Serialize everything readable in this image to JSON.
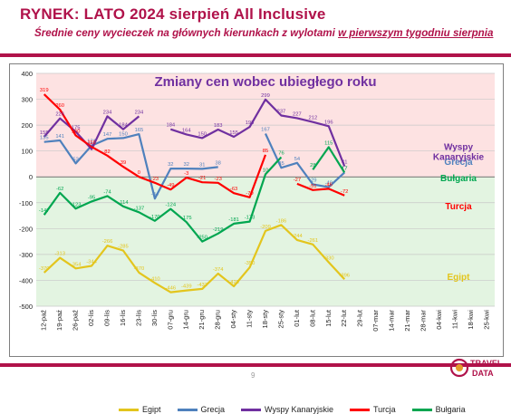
{
  "header": {
    "title": "RYNEK: LATO 2024 sierpień All Inclusive",
    "subtitle_a": "Średnie ceny wycieczek na głównych kierunkach z wylotami ",
    "subtitle_b": "w pierwszym tygodniu sierpnia"
  },
  "footer": {
    "page": "9",
    "logo_top": "TRAVEL",
    "logo_bottom": "DATA"
  },
  "chart_data": {
    "type": "line",
    "title": "Zmiany cen wobec ubiegłego roku",
    "xlabel": "",
    "ylabel": "",
    "ylim": [
      -500,
      400
    ],
    "yticks": [
      400,
      300,
      200,
      100,
      0,
      -100,
      -200,
      -300,
      -400,
      -500
    ],
    "grid": true,
    "legend": "bottom",
    "categories": [
      "12-paź",
      "19-paź",
      "26-paź",
      "02-lis",
      "09-lis",
      "16-lis",
      "23-lis",
      "30-lis",
      "07-gru",
      "14-gru",
      "21-gru",
      "28-gru",
      "04-sty",
      "11-sty",
      "18-sty",
      "25-sty",
      "01-lut",
      "08-lut",
      "15-lut",
      "22-lut",
      "29-lut",
      "07-mar",
      "14-mar",
      "21-mar",
      "28-mar",
      "04-kwi",
      "11-kwi",
      "18-kwi",
      "25-kwi"
    ],
    "series": [
      {
        "name": "Egipt",
        "color": "#e3c51d",
        "end_label": "Egipt",
        "end_y": -399,
        "values": [
          -370,
          -313,
          -354,
          -344,
          -266,
          -285,
          -370,
          -410,
          -446,
          -439,
          -433,
          -374,
          -423,
          -350,
          -209,
          -186,
          -244,
          -261,
          -330,
          -396,
          null,
          null,
          null,
          null,
          null,
          null,
          null,
          null,
          null
        ],
        "labels": [
          "-370",
          "-313",
          "-354",
          "-344",
          "-266",
          "-285",
          "-370",
          "-410",
          "-446",
          "-439",
          "-433",
          "-374",
          "-423",
          "-350",
          "-209",
          "-186",
          "-244",
          "-261",
          "-330",
          "-396",
          "",
          "",
          "",
          "",
          "",
          "",
          "",
          "",
          ""
        ]
      },
      {
        "name": "Grecja",
        "color": "#4f81bd",
        "end_label": "Grecja",
        "end_y": 46,
        "values": [
          135,
          141,
          52,
          121,
          147,
          150,
          165,
          -84,
          32,
          32,
          31,
          38,
          null,
          null,
          167,
          35,
          54,
          -29,
          -40,
          17,
          null,
          null,
          null,
          null,
          null,
          null,
          null,
          null,
          null
        ],
        "labels": [
          "135",
          "141",
          "52",
          "121",
          "147",
          "150",
          "165",
          "-84",
          "32",
          "32",
          "31",
          "38",
          "",
          "",
          "167",
          "35",
          "54",
          "-29",
          "-40",
          "17",
          "",
          "",
          "",
          "",
          "",
          "",
          "",
          "",
          ""
        ]
      },
      {
        "name": "Wyspy Kanaryjskie",
        "color": "#7030a0",
        "end_label": "Wyspy\nKanaryjskie",
        "end_y": 104,
        "values": [
          155,
          226,
          175,
          107,
          234,
          184,
          234,
          null,
          184,
          164,
          150,
          183,
          155,
          193,
          299,
          237,
          227,
          212,
          196,
          41,
          null,
          null,
          null,
          null,
          null,
          null,
          null,
          null,
          null
        ],
        "labels": [
          "155",
          "226",
          "175",
          "107",
          "234",
          "184",
          "234",
          "",
          "184",
          "164",
          "150",
          "183",
          "155",
          "193",
          "299",
          "237",
          "227",
          "212",
          "196",
          "41",
          "",
          "",
          "",
          "",
          "",
          "",
          "",
          "",
          ""
        ]
      },
      {
        "name": "Turcja",
        "color": "#ff0000",
        "end_label": "Turcja",
        "end_y": -125,
        "values": [
          319,
          260,
          160,
          116,
          82,
          39,
          0,
          -23,
          -49,
          -3,
          -21,
          -23,
          -63,
          -79,
          85,
          null,
          -27,
          -51,
          -46,
          -72,
          null,
          null,
          null,
          null,
          null,
          null,
          null,
          null,
          null
        ],
        "labels": [
          "319",
          "260",
          "160",
          "116",
          "82",
          "39",
          "0",
          "-23",
          "-49",
          "-3",
          "-21",
          "-23",
          "-63",
          "-79",
          "85",
          "",
          "-27",
          "-51",
          "-46",
          "-72",
          "",
          "",
          "",
          "",
          "",
          "",
          "",
          "",
          ""
        ]
      },
      {
        "name": "Bułgaria",
        "color": "#00a650",
        "end_label": "Bułgaria",
        "end_y": -17,
        "values": [
          -147,
          -62,
          -123,
          -95,
          -74,
          -114,
          -137,
          -170,
          -124,
          -175,
          -250,
          -219,
          -181,
          -173,
          10,
          76,
          null,
          28,
          115,
          17,
          null,
          null,
          null,
          null,
          null,
          null,
          null,
          null,
          null
        ],
        "labels": [
          "-147",
          "-62",
          "-123",
          "-95",
          "-74",
          "-114",
          "-137",
          "-170",
          "-124",
          "-175",
          "-250",
          "-219",
          "-181",
          "-173",
          "10",
          "76",
          "",
          "28",
          "115",
          "17",
          "",
          "",
          "",
          "",
          "",
          "",
          "",
          "",
          ""
        ]
      }
    ]
  }
}
